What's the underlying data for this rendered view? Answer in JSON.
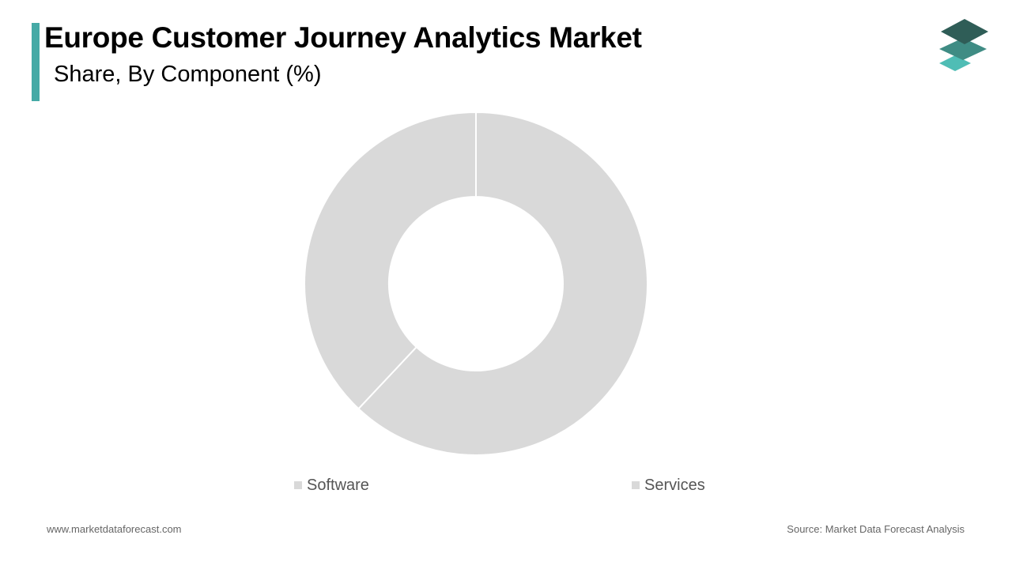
{
  "header": {
    "title": "Europe Customer Journey Analytics Market",
    "subtitle": "Share, By Component (%)",
    "accent_color": "#45aaa6"
  },
  "logo": {
    "icon": "stacked-layers-logo-icon",
    "colors": [
      "#2f5d57",
      "#3f8c84",
      "#4fbdb5"
    ]
  },
  "chart_data": {
    "type": "pie",
    "donut": true,
    "title": "",
    "slices": [
      {
        "label": "Software",
        "value": 62,
        "color": "#d9d9d9"
      },
      {
        "label": "Services",
        "value": 38,
        "color": "#d9d9d9"
      }
    ],
    "legend_placement": "bottom"
  },
  "footer": {
    "website": "www.marketdataforecast.com",
    "source": "Source: Market Data Forecast Analysis"
  }
}
